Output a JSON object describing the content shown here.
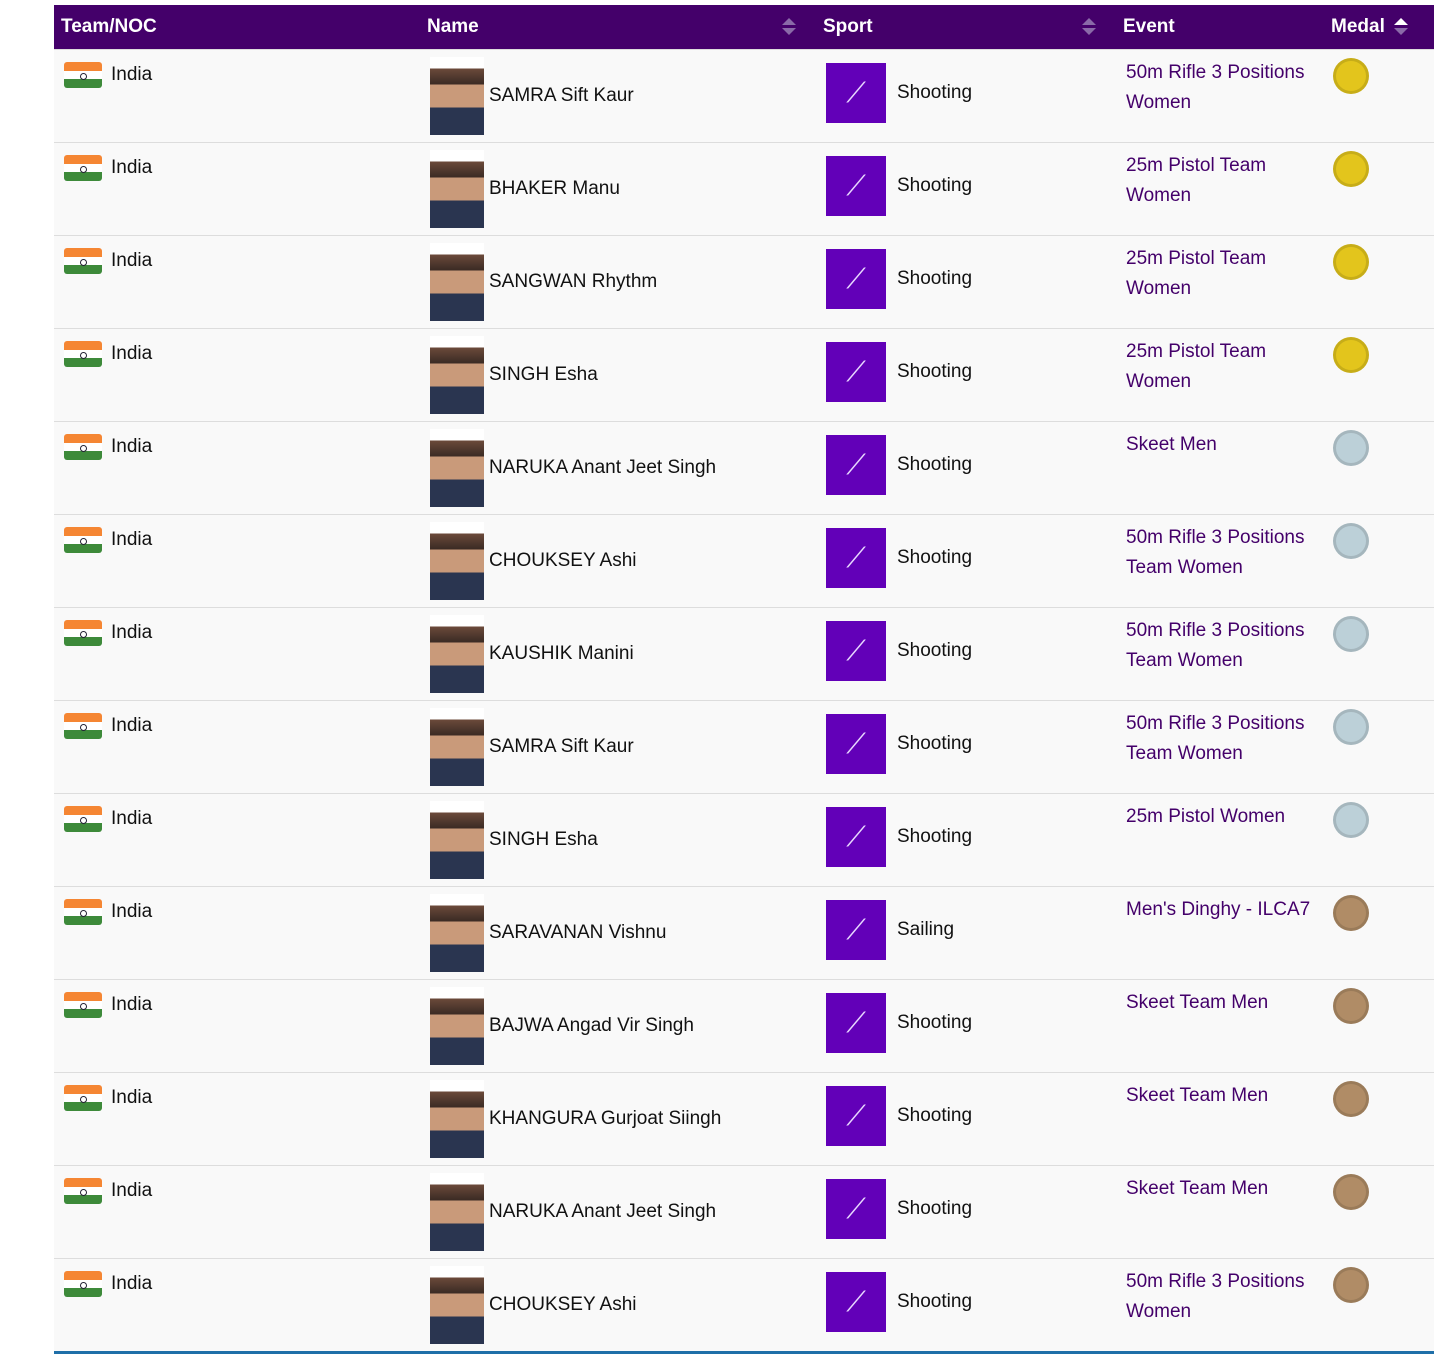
{
  "headers": {
    "team": "Team/NOC",
    "name": "Name",
    "sport": "Sport",
    "event": "Event",
    "medal": "Medal"
  },
  "medal_colors": {
    "gold": "#e3c51c",
    "silver": "#bcd0d8",
    "bronze": "#b08c66"
  },
  "rows": [
    {
      "team": "India",
      "name": "SAMRA Sift Kaur",
      "sport": "Shooting",
      "event": "50m Rifle 3 Positions Women",
      "medal": "gold"
    },
    {
      "team": "India",
      "name": "BHAKER Manu",
      "sport": "Shooting",
      "event": "25m Pistol Team Women",
      "medal": "gold"
    },
    {
      "team": "India",
      "name": "SANGWAN Rhythm",
      "sport": "Shooting",
      "event": "25m Pistol Team Women",
      "medal": "gold"
    },
    {
      "team": "India",
      "name": "SINGH Esha",
      "sport": "Shooting",
      "event": "25m Pistol Team Women",
      "medal": "gold"
    },
    {
      "team": "India",
      "name": "NARUKA Anant Jeet Singh",
      "sport": "Shooting",
      "event": "Skeet Men",
      "medal": "silver"
    },
    {
      "team": "India",
      "name": "CHOUKSEY Ashi",
      "sport": "Shooting",
      "event": "50m Rifle 3 Positions Team Women",
      "medal": "silver"
    },
    {
      "team": "India",
      "name": "KAUSHIK Manini",
      "sport": "Shooting",
      "event": "50m Rifle 3 Positions Team Women",
      "medal": "silver"
    },
    {
      "team": "India",
      "name": "SAMRA Sift Kaur",
      "sport": "Shooting",
      "event": "50m Rifle 3 Positions Team Women",
      "medal": "silver"
    },
    {
      "team": "India",
      "name": "SINGH Esha",
      "sport": "Shooting",
      "event": "25m Pistol Women",
      "medal": "silver"
    },
    {
      "team": "India",
      "name": "SARAVANAN Vishnu",
      "sport": "Sailing",
      "event": "Men's Dinghy - ILCA7",
      "medal": "bronze"
    },
    {
      "team": "India",
      "name": "BAJWA Angad Vir Singh",
      "sport": "Shooting",
      "event": "Skeet Team Men",
      "medal": "bronze"
    },
    {
      "team": "India",
      "name": "KHANGURA Gurjoat Siingh",
      "sport": "Shooting",
      "event": "Skeet Team Men",
      "medal": "bronze"
    },
    {
      "team": "India",
      "name": "NARUKA Anant Jeet Singh",
      "sport": "Shooting",
      "event": "Skeet Team Men",
      "medal": "bronze"
    },
    {
      "team": "India",
      "name": "CHOUKSEY Ashi",
      "sport": "Shooting",
      "event": "50m Rifle 3 Positions Women",
      "medal": "bronze"
    }
  ]
}
